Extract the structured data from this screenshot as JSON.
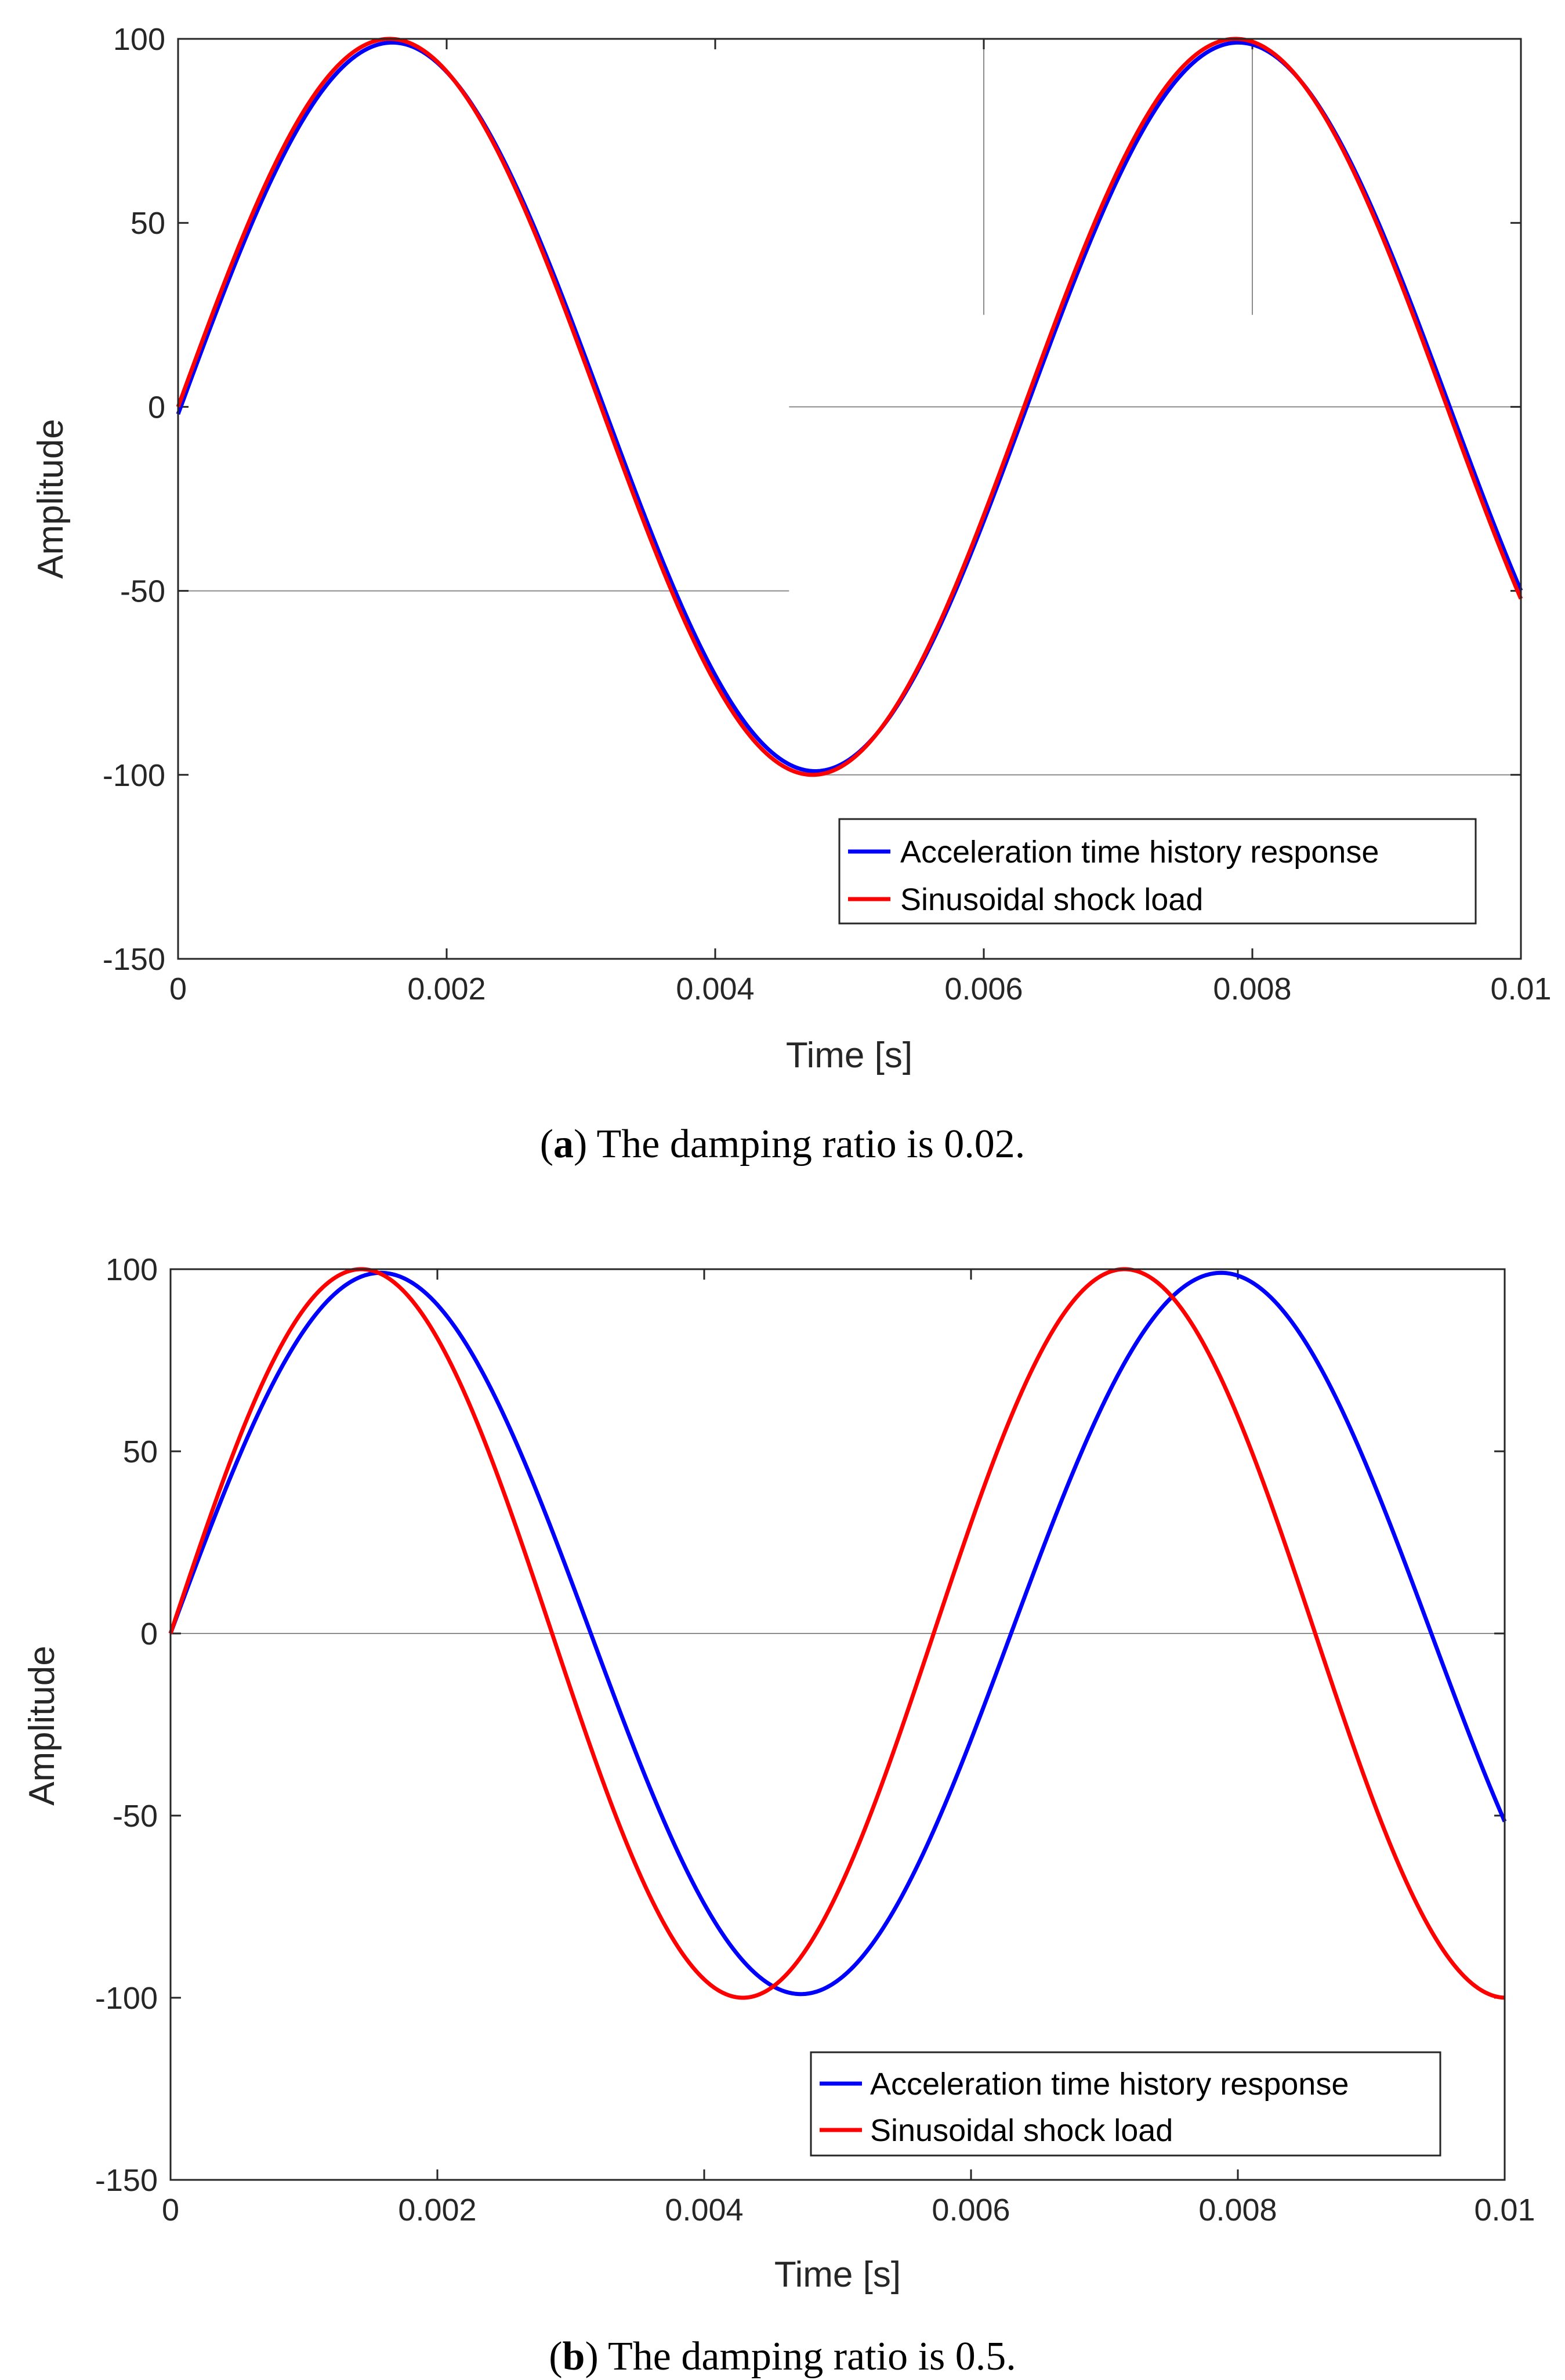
{
  "colors": {
    "response": "#0000ff",
    "load": "#ff0000",
    "axis": "#262626",
    "overlay": "#8c8c8c"
  },
  "chart_data": [
    {
      "type": "line",
      "caption": {
        "open": "(",
        "letter": "a",
        "rest": ") The damping ratio is 0.02."
      },
      "xlabel": "Time [s]",
      "ylabel": "Amplitude",
      "xlim": [
        0,
        0.01
      ],
      "ylim": [
        -150,
        100
      ],
      "xticks": [
        0,
        0.002,
        0.004,
        0.006,
        0.008,
        0.01
      ],
      "xtick_labels": [
        "0",
        "0.002",
        "0.004",
        "0.006",
        "0.008",
        "0.01"
      ],
      "yticks": [
        -150,
        -100,
        -50,
        0,
        50,
        100
      ],
      "ytick_labels": [
        "-150",
        "-100",
        "-50",
        "0",
        "50",
        "100"
      ],
      "legend": {
        "location": "bottom-right",
        "entries": [
          "Acceleration time history response",
          "Sinusoidal shock load"
        ]
      },
      "series": [
        {
          "name": "Acceleration time history response",
          "color": "#0000ff",
          "amplitude": 99,
          "period": 0.0063,
          "phase_lag": 2e-05,
          "end_value": -55
        },
        {
          "name": "Sinusoidal shock load",
          "color": "#ff0000",
          "amplitude": 100,
          "period": 0.0063,
          "phase_lag": 0,
          "end_value": -53
        }
      ],
      "reference_lines": [
        {
          "orientation": "horizontal",
          "y": -50,
          "x_from": 0,
          "x_to": 0.00455
        },
        {
          "orientation": "horizontal",
          "y": 0,
          "x_from": 0.00455,
          "x_to": 0.01
        },
        {
          "orientation": "horizontal",
          "y": -100,
          "x_from": 0.0047,
          "x_to": 0.01
        },
        {
          "orientation": "vertical",
          "x": 0.006,
          "y_from": 25,
          "y_to": 100
        },
        {
          "orientation": "vertical",
          "x": 0.008,
          "y_from": 25,
          "y_to": 100
        }
      ]
    },
    {
      "type": "line",
      "caption": {
        "open": "(",
        "letter": "b",
        "rest": ") The damping ratio is 0.5."
      },
      "xlabel": "Time [s]",
      "ylabel": "Amplitude",
      "xlim": [
        0,
        0.01
      ],
      "ylim": [
        -150,
        100
      ],
      "xticks": [
        0,
        0.002,
        0.004,
        0.006,
        0.008,
        0.01
      ],
      "xtick_labels": [
        "0",
        "0.002",
        "0.004",
        "0.006",
        "0.008",
        "0.01"
      ],
      "yticks": [
        -150,
        -100,
        -50,
        0,
        50,
        100
      ],
      "ytick_labels": [
        "-150",
        "-100",
        "-50",
        "0",
        "50",
        "100"
      ],
      "legend": {
        "location": "bottom-right",
        "entries": [
          "Acceleration time history response",
          "Sinusoidal shock load"
        ]
      },
      "series": [
        {
          "name": "Acceleration time history response",
          "color": "#0000ff",
          "amplitude": 99,
          "period": 0.0063,
          "phase_lag": 0,
          "end_value": -55
        },
        {
          "name": "Sinusoidal shock load",
          "color": "#ff0000",
          "amplitude": 100,
          "period": 0.00572,
          "phase_lag": 0,
          "end_value": -100
        }
      ],
      "reference_lines": [
        {
          "orientation": "horizontal",
          "y": 0,
          "x_from": 0,
          "x_to": 0.01
        }
      ]
    }
  ]
}
